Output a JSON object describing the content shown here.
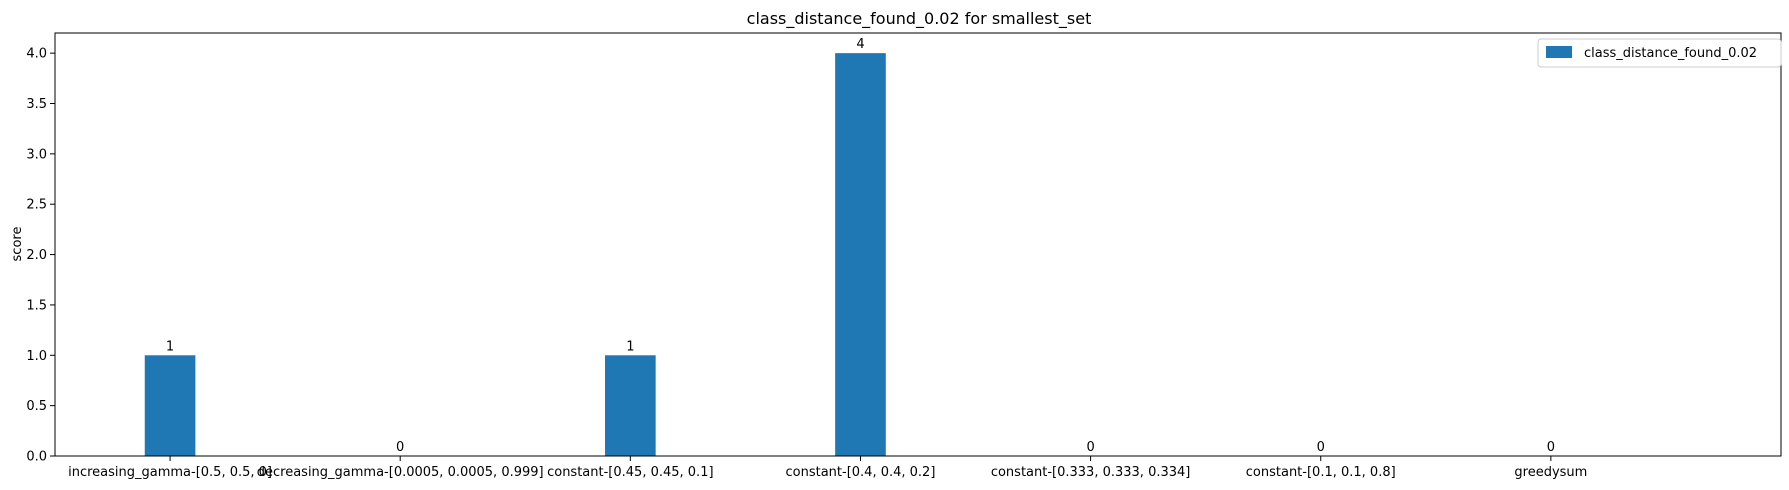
{
  "chart_data": {
    "type": "bar",
    "title": "class_distance_found_0.02 for smallest_set",
    "xlabel": "",
    "ylabel": "score",
    "ylim": [
      0,
      4.2
    ],
    "yticks": [
      "0.0",
      "0.5",
      "1.0",
      "1.5",
      "2.0",
      "2.5",
      "3.0",
      "3.5",
      "4.0"
    ],
    "categories": [
      "increasing_gamma-[0.5, 0.5, 0]",
      "decreasing_gamma-[0.0005, 0.0005, 0.999]",
      "constant-[0.45, 0.45, 0.1]",
      "constant-[0.4, 0.4, 0.2]",
      "constant-[0.333, 0.333, 0.334]",
      "constant-[0.1, 0.1, 0.8]",
      "greedysum"
    ],
    "series": [
      {
        "name": "class_distance_found_0.02",
        "values": [
          1,
          0,
          1,
          4,
          0,
          0,
          0
        ],
        "data_labels": [
          "1",
          "0",
          "1",
          "4",
          "0",
          "0",
          "0"
        ]
      }
    ],
    "bar_color": "#1f77b4",
    "legend_position": "top-right",
    "grid": false
  }
}
